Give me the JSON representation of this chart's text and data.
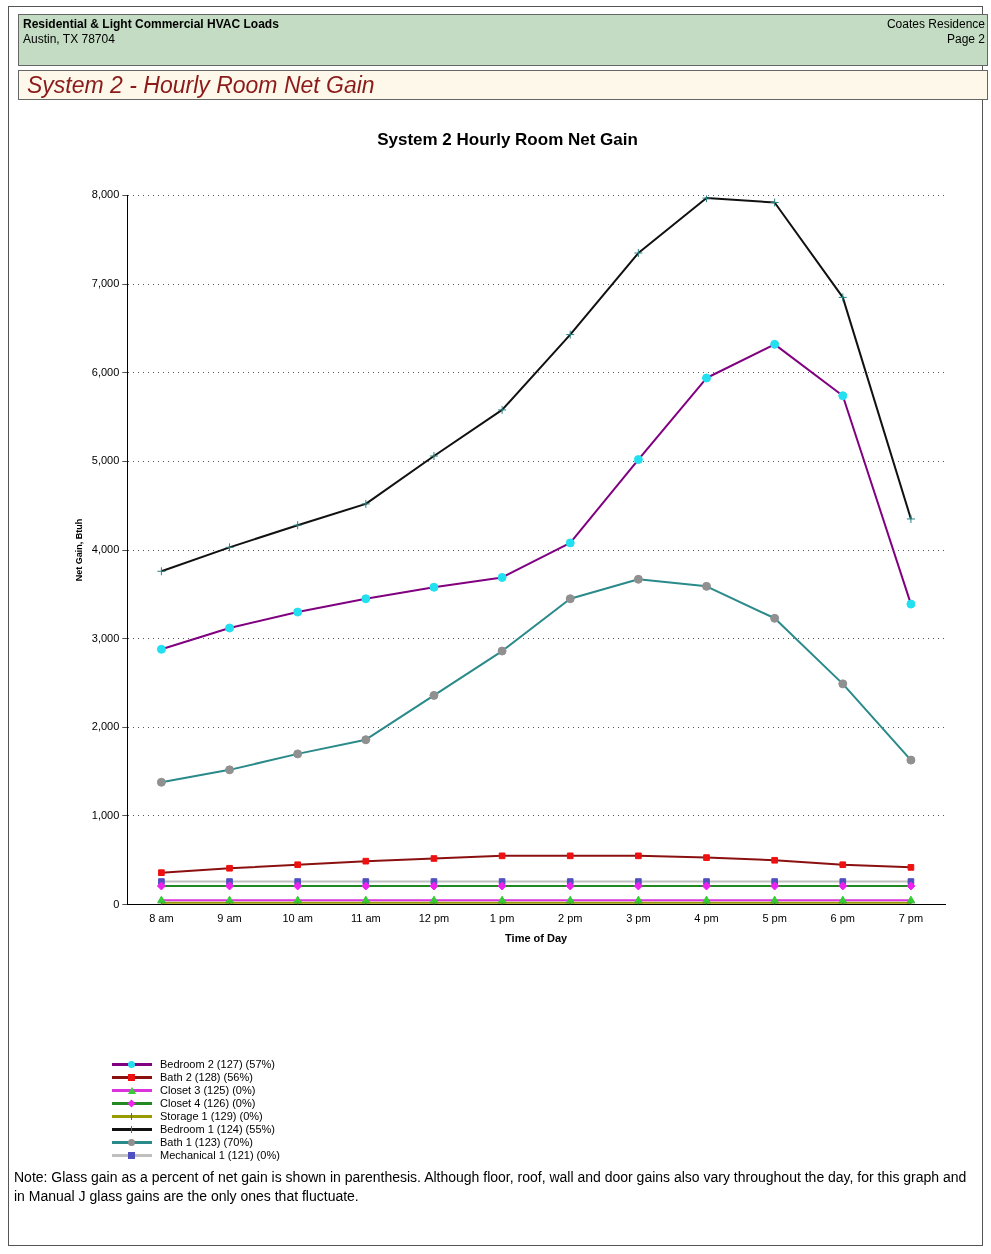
{
  "chart_data": {
    "type": "line",
    "title": "System 2 Hourly Room Net Gain",
    "subtitle": "System 2 - Hourly Room Net Gain",
    "annotations": [
      "Residential & Light Commercial HVAC Loads",
      "Austin, TX  78704",
      "Coates Residence",
      "Page 2",
      "Note: Glass gain as a percent of net gain is shown in parenthesis.  Although floor, roof, wall and door gains also vary throughout the day, for this graph and in Manual J glass gains are the only ones that fluctuate."
    ],
    "xlabel": "Time of Day",
    "ylabel": "Net Gain, Btuh",
    "categories": [
      "8 am",
      "9 am",
      "10 am",
      "11 am",
      "12 pm",
      "1 pm",
      "2 pm",
      "3 pm",
      "4 pm",
      "5 pm",
      "6 pm",
      "7 pm"
    ],
    "ylim": [
      0,
      8000
    ],
    "yticks": [
      {
        "value": 0,
        "label": "0"
      },
      {
        "value": 1000,
        "label": "1,000"
      },
      {
        "value": 2000,
        "label": "2,000"
      },
      {
        "value": 3000,
        "label": "3,000"
      },
      {
        "value": 4000,
        "label": "4,000"
      },
      {
        "value": 5000,
        "label": "5,000"
      },
      {
        "value": 6000,
        "label": "6,000"
      },
      {
        "value": 7000,
        "label": "7,000"
      },
      {
        "value": 8000,
        "label": "8,000"
      }
    ],
    "grid": "y",
    "legend": "bottom left",
    "line_style": "solid",
    "series": [
      {
        "name": "Bedroom 2 (127) (57%)",
        "color": "#800080",
        "marker": "circle",
        "colors": [
          "#22e0f0",
          "#22e0f0",
          "#22e0f0",
          "#22e0f0",
          "#22e0f0",
          "#22e0f0",
          "#22e0f0",
          "#22e0f0",
          "#22e0f0",
          "#22e0f0",
          "#22e0f0",
          "#22e0f0"
        ],
        "values": [
          2880,
          3120,
          3300,
          3450,
          3580,
          3690,
          4080,
          5020,
          5940,
          6320,
          5740,
          3390
        ]
      },
      {
        "name": "Bath 2 (128) (56%)",
        "color": "#8b1010",
        "marker": "square",
        "colors": [
          "#ee1111",
          "#ee1111",
          "#ee1111",
          "#ee1111",
          "#ee1111",
          "#ee1111",
          "#ee1111",
          "#ee1111",
          "#ee1111",
          "#ee1111",
          "#ee1111",
          "#ee1111"
        ],
        "values": [
          360,
          410,
          450,
          490,
          520,
          550,
          550,
          550,
          530,
          500,
          450,
          420
        ]
      },
      {
        "name": "Closet 3 (125) (0%)",
        "color": "#dd33dd",
        "marker": "triangle",
        "colors": [
          "#33cc33",
          "#33cc33",
          "#33cc33",
          "#33cc33",
          "#33cc33",
          "#33cc33",
          "#33cc33",
          "#33cc33",
          "#33cc33",
          "#33cc33",
          "#33cc33",
          "#33cc33"
        ],
        "values": [
          50,
          50,
          50,
          50,
          50,
          50,
          50,
          50,
          50,
          50,
          50,
          50
        ]
      },
      {
        "name": "Closet 4 (126) (0%)",
        "color": "#228822",
        "marker": "diamond",
        "colors": [
          "#ee22ee",
          "#ee22ee",
          "#ee22ee",
          "#ee22ee",
          "#ee22ee",
          "#ee22ee",
          "#ee22ee",
          "#ee22ee",
          "#ee22ee",
          "#ee22ee",
          "#ee22ee",
          "#ee22ee"
        ],
        "values": [
          210,
          210,
          210,
          210,
          210,
          210,
          210,
          210,
          210,
          210,
          210,
          210
        ]
      },
      {
        "name": "Storage 1 (129) (0%)",
        "color": "#999900",
        "marker": "cross",
        "colors": [
          "#228822",
          "#228822",
          "#228822",
          "#228822",
          "#228822",
          "#228822",
          "#228822",
          "#228822",
          "#228822",
          "#228822",
          "#228822",
          "#228822"
        ],
        "values": [
          20,
          20,
          20,
          20,
          20,
          20,
          20,
          20,
          20,
          20,
          20,
          20
        ]
      },
      {
        "name": "Bedroom 1 (124) (55%)",
        "color": "#111111",
        "marker": "cross",
        "colors": [
          "#2a8080",
          "#2a8080",
          "#2a8080",
          "#2a8080",
          "#2a8080",
          "#2a8080",
          "#2a8080",
          "#2a8080",
          "#2a8080",
          "#2a8080",
          "#2a8080",
          "#2a8080"
        ],
        "values": [
          3760,
          4030,
          4280,
          4520,
          5060,
          5580,
          6430,
          7350,
          7970,
          7920,
          6850,
          4350
        ]
      },
      {
        "name": "Bath 1 (123) (70%)",
        "color": "#2a8a8a",
        "marker": "circle",
        "colors": [
          "#909090",
          "#909090",
          "#909090",
          "#909090",
          "#909090",
          "#909090",
          "#909090",
          "#909090",
          "#909090",
          "#909090",
          "#909090",
          "#909090"
        ],
        "values": [
          1380,
          1520,
          1700,
          1860,
          2360,
          2860,
          3450,
          3670,
          3590,
          3230,
          2490,
          1630
        ]
      },
      {
        "name": "Mechanical 1 (121) (0%)",
        "color": "#c0c0c0",
        "marker": "square",
        "colors": [
          "#5050c0",
          "#5050c0",
          "#5050c0",
          "#5050c0",
          "#5050c0",
          "#5050c0",
          "#5050c0",
          "#5050c0",
          "#5050c0",
          "#5050c0",
          "#5050c0",
          "#5050c0"
        ],
        "values": [
          260,
          260,
          260,
          260,
          260,
          260,
          260,
          260,
          260,
          260,
          260,
          260
        ]
      }
    ]
  }
}
